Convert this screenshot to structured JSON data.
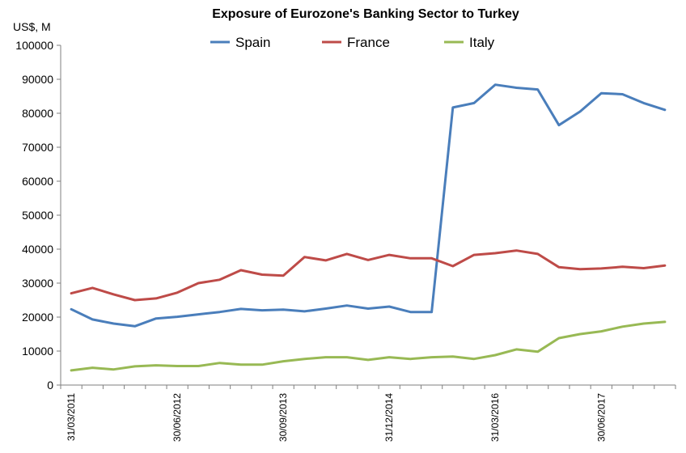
{
  "chart_data": {
    "type": "line",
    "title": "Exposure of Eurozone's Banking Sector to Turkey",
    "ylabel": "US$, M",
    "xlabel": "",
    "ylim": [
      0,
      100000
    ],
    "yticks": [
      0,
      10000,
      20000,
      30000,
      40000,
      50000,
      60000,
      70000,
      80000,
      90000,
      100000
    ],
    "grid": false,
    "legend_position": "top",
    "x": [
      "31/03/2011",
      "30/06/2011",
      "30/09/2011",
      "31/12/2011",
      "31/03/2012",
      "30/06/2012",
      "30/09/2012",
      "31/12/2012",
      "31/03/2013",
      "30/06/2013",
      "30/09/2013",
      "31/12/2013",
      "31/03/2014",
      "30/06/2014",
      "30/09/2014",
      "31/12/2014",
      "31/03/2015",
      "30/06/2015",
      "30/09/2015",
      "31/12/2015",
      "31/03/2016",
      "30/06/2016",
      "30/09/2016",
      "31/12/2016",
      "31/03/2017",
      "30/06/2017",
      "30/09/2017",
      "31/12/2017",
      "31/03/2018"
    ],
    "xtick_labels": [
      "31/03/2011",
      "30/06/2012",
      "30/09/2013",
      "31/12/2014",
      "31/03/2016",
      "30/06/2017"
    ],
    "series": [
      {
        "name": "Spain",
        "color": "#4a7ebb",
        "values": [
          22300,
          19300,
          18100,
          17300,
          19600,
          20100,
          20800,
          21500,
          22400,
          22000,
          22200,
          21700,
          22500,
          23400,
          22500,
          23100,
          21500,
          21500,
          81700,
          83000,
          88400,
          87500,
          87000,
          76500,
          80500,
          85900,
          85600,
          83000,
          81000
        ]
      },
      {
        "name": "France",
        "color": "#be4b48",
        "values": [
          27000,
          28600,
          26700,
          25000,
          25500,
          27200,
          30000,
          31000,
          33800,
          32500,
          32200,
          37700,
          36700,
          38600,
          36800,
          38300,
          37300,
          37300,
          35000,
          38300,
          38800,
          39600,
          38600,
          34700,
          34100,
          34300,
          34800,
          34400,
          35200
        ]
      },
      {
        "name": "Italy",
        "color": "#98b954",
        "values": [
          4300,
          5100,
          4600,
          5500,
          5800,
          5600,
          5600,
          6500,
          6000,
          6000,
          7000,
          7700,
          8200,
          8200,
          7400,
          8200,
          7700,
          8200,
          8400,
          7700,
          8800,
          10500,
          9800,
          13800,
          15000,
          15800,
          17200,
          18100,
          18600
        ]
      }
    ]
  }
}
